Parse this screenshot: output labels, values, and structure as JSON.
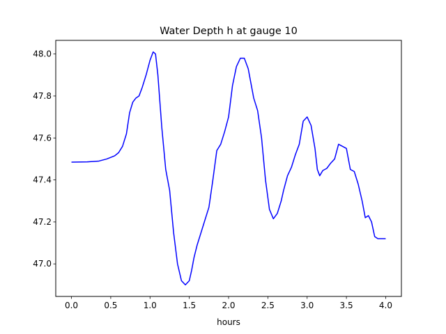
{
  "chart_data": {
    "type": "line",
    "title": "Water Depth h at gauge 10",
    "xlabel": "hours",
    "ylabel": "",
    "xlim": [
      -0.2,
      4.2
    ],
    "ylim": [
      46.845,
      48.065
    ],
    "grid": false,
    "xticks": [
      0.0,
      0.5,
      1.0,
      1.5,
      2.0,
      2.5,
      3.0,
      3.5,
      4.0
    ],
    "xtick_labels": [
      "0.0",
      "0.5",
      "1.0",
      "1.5",
      "2.0",
      "2.5",
      "3.0",
      "3.5",
      "4.0"
    ],
    "yticks": [
      47.0,
      47.2,
      47.4,
      47.6,
      47.8,
      48.0
    ],
    "ytick_labels": [
      "47.0",
      "47.2",
      "47.4",
      "47.6",
      "47.8",
      "48.0"
    ],
    "series": [
      {
        "color": "#0000ff",
        "x": [
          0.0,
          0.2,
          0.35,
          0.45,
          0.55,
          0.6,
          0.65,
          0.7,
          0.74,
          0.78,
          0.82,
          0.86,
          0.9,
          0.95,
          1.0,
          1.04,
          1.07,
          1.1,
          1.15,
          1.2,
          1.25,
          1.3,
          1.35,
          1.4,
          1.45,
          1.5,
          1.53,
          1.56,
          1.6,
          1.65,
          1.7,
          1.75,
          1.8,
          1.85,
          1.9,
          1.95,
          2.0,
          2.05,
          2.1,
          2.15,
          2.2,
          2.25,
          2.28,
          2.32,
          2.37,
          2.42,
          2.47,
          2.52,
          2.57,
          2.62,
          2.67,
          2.7,
          2.75,
          2.8,
          2.85,
          2.9,
          2.95,
          3.0,
          3.05,
          3.1,
          3.13,
          3.16,
          3.2,
          3.25,
          3.3,
          3.35,
          3.4,
          3.45,
          3.5,
          3.55,
          3.6,
          3.65,
          3.7,
          3.74,
          3.78,
          3.82,
          3.86,
          3.9,
          3.92,
          3.94,
          3.96,
          3.98,
          4.0
        ],
        "y": [
          47.485,
          47.486,
          47.49,
          47.5,
          47.515,
          47.53,
          47.56,
          47.62,
          47.72,
          47.77,
          47.79,
          47.8,
          47.84,
          47.9,
          47.97,
          48.01,
          48.0,
          47.9,
          47.65,
          47.45,
          47.35,
          47.15,
          47.0,
          46.92,
          46.9,
          46.92,
          46.97,
          47.03,
          47.09,
          47.15,
          47.21,
          47.27,
          47.4,
          47.54,
          47.57,
          47.63,
          47.7,
          47.85,
          47.94,
          47.98,
          47.98,
          47.93,
          47.87,
          47.79,
          47.73,
          47.6,
          47.4,
          47.26,
          47.215,
          47.24,
          47.3,
          47.35,
          47.42,
          47.46,
          47.52,
          47.57,
          47.68,
          47.7,
          47.66,
          47.55,
          47.45,
          47.42,
          47.445,
          47.455,
          47.48,
          47.5,
          47.57,
          47.56,
          47.55,
          47.45,
          47.44,
          47.38,
          47.3,
          47.22,
          47.23,
          47.2,
          47.13,
          47.12,
          47.12,
          47.12,
          47.12,
          47.12,
          47.12
        ]
      }
    ]
  }
}
